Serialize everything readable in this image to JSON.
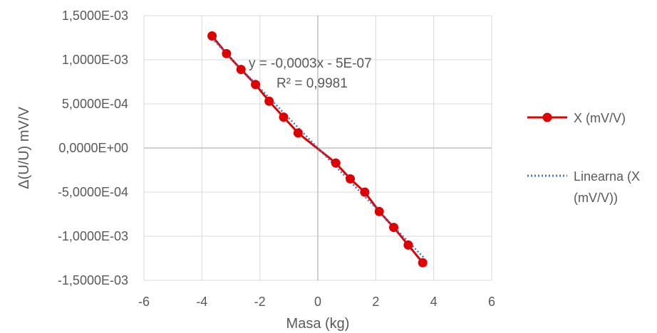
{
  "chart_data": {
    "type": "scatter",
    "xlabel": "Masa (kg)",
    "ylabel": "Δ(U/U) mV/V",
    "xlim": [
      -6,
      6
    ],
    "ylim": [
      -0.0015,
      0.0015
    ],
    "x_ticks": [
      -6,
      -4,
      -2,
      0,
      2,
      4,
      6
    ],
    "y_ticks": [
      0.0015,
      0.001,
      0.0005,
      0,
      -0.0005,
      -0.001,
      -0.0015
    ],
    "x_tick_labels": [
      "-6",
      "-4",
      "-2",
      "0",
      "2",
      "4",
      "6"
    ],
    "y_tick_labels": [
      "1,5000E-03",
      "1,0000E-03",
      "5,0000E-04",
      "0,0000E+00",
      "-5,0000E-04",
      "-1,0000E-03",
      "-1,5000E-03"
    ],
    "grid": true,
    "legend_position": "right",
    "series": [
      {
        "name": "X (mV/V)",
        "style": "line-markers",
        "color": "#e00000",
        "x": [
          -3.65,
          -3.15,
          -2.65,
          -2.15,
          -1.68,
          -1.18,
          -0.68,
          0.62,
          1.12,
          1.62,
          2.12,
          2.62,
          3.12,
          3.62
        ],
        "y": [
          0.00127,
          0.00107,
          0.00089,
          0.00072,
          0.00053,
          0.00035,
          0.00017,
          -0.00017,
          -0.00035,
          -0.0005,
          -0.00072,
          -0.0009,
          -0.0011,
          -0.0013
        ]
      },
      {
        "name": "Linearna (X (mV/V))",
        "style": "dotted-line",
        "color": "#4472c4",
        "x": [
          -3.65,
          3.65
        ],
        "y": [
          0.00124,
          -0.00124
        ]
      }
    ],
    "annotations": {
      "equation": "y = -0,0003x - 5E-07",
      "r_squared": "R² = 0,9981"
    },
    "legend": {
      "line1": "X (mV/V)",
      "line2a": "Linearna (X",
      "line2b": "(mV/V))"
    }
  }
}
